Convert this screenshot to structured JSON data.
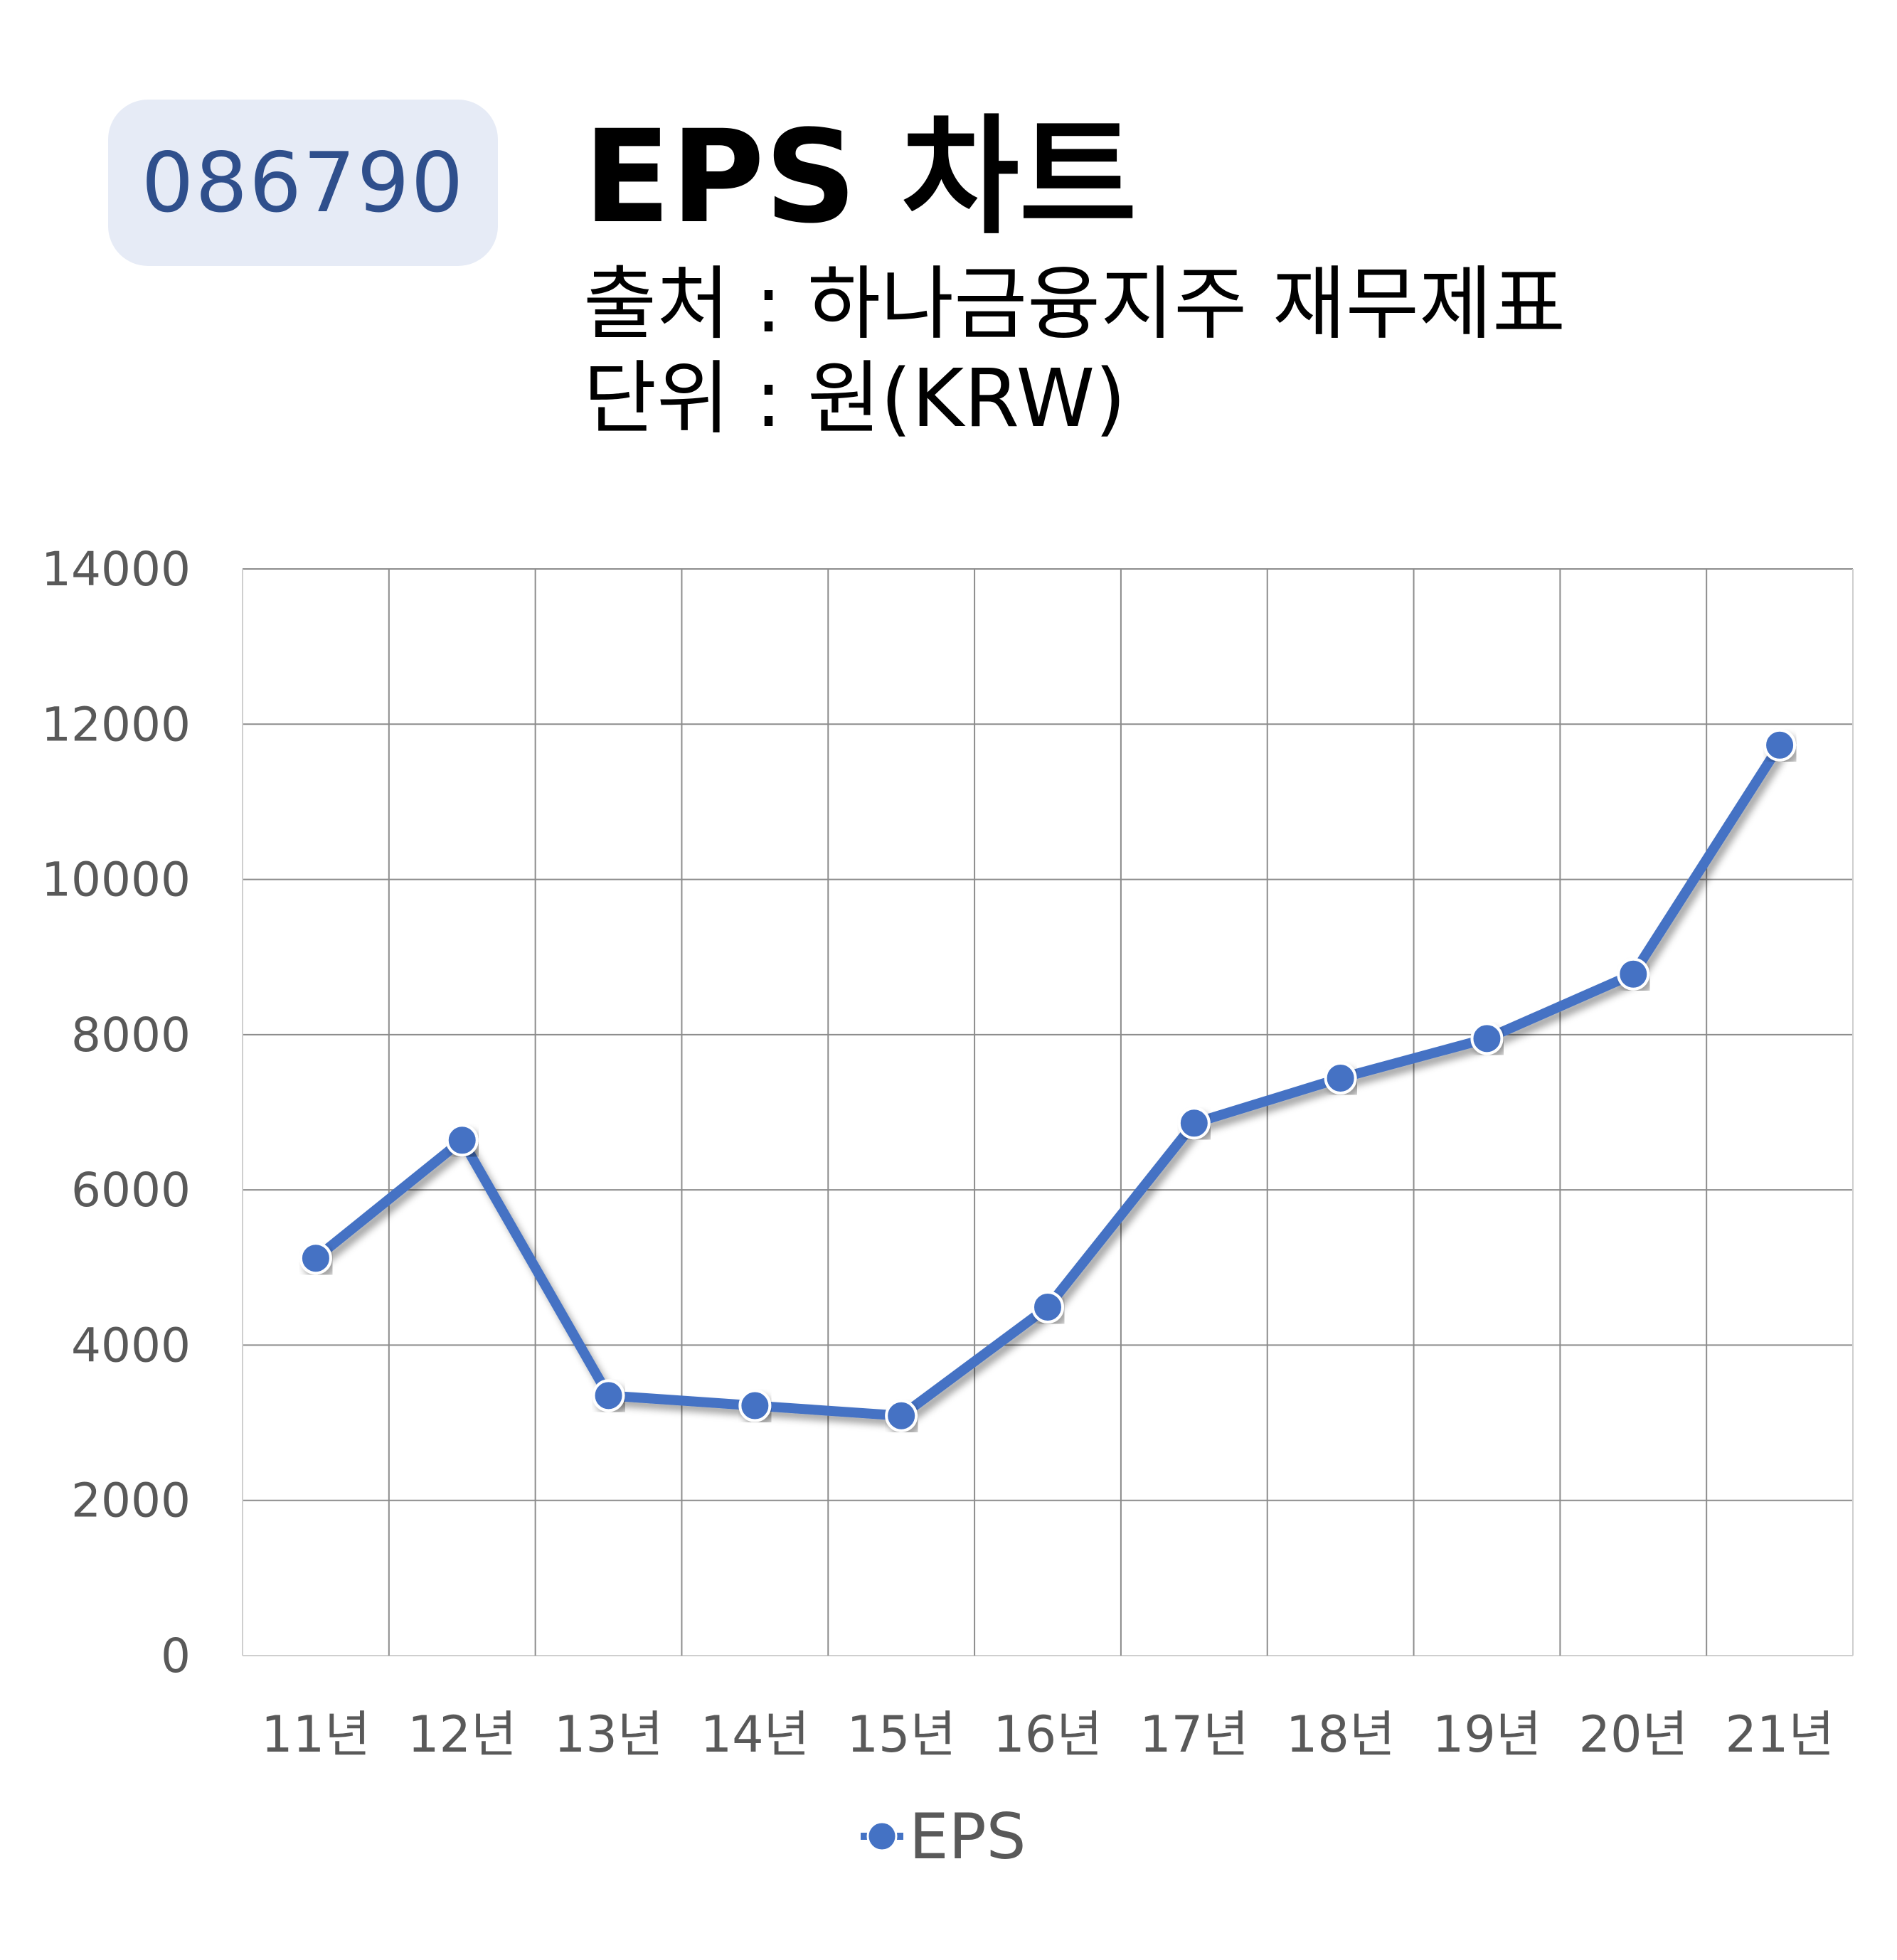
{
  "header": {
    "ticker": "086790",
    "title": "EPS 차트",
    "source": "출처 : 하나금융지주 재무제표",
    "unit": "단위 : 원(KRW)"
  },
  "chart_data": {
    "type": "line",
    "categories": [
      "11년",
      "12년",
      "13년",
      "14년",
      "15년",
      "16년",
      "17년",
      "18년",
      "19년",
      "20년",
      "21년"
    ],
    "series": [
      {
        "name": "EPS",
        "values": [
          5120,
          6640,
          3350,
          3220,
          3090,
          4490,
          6860,
          7440,
          7950,
          8780,
          11730
        ]
      }
    ],
    "ylim": [
      0,
      14000
    ],
    "yticks": [
      0,
      2000,
      4000,
      6000,
      8000,
      10000,
      12000,
      14000
    ],
    "grid": true,
    "legend_position": "bottom",
    "colors": {
      "line": "#4472c4",
      "grid": "#8c8c8c"
    }
  }
}
